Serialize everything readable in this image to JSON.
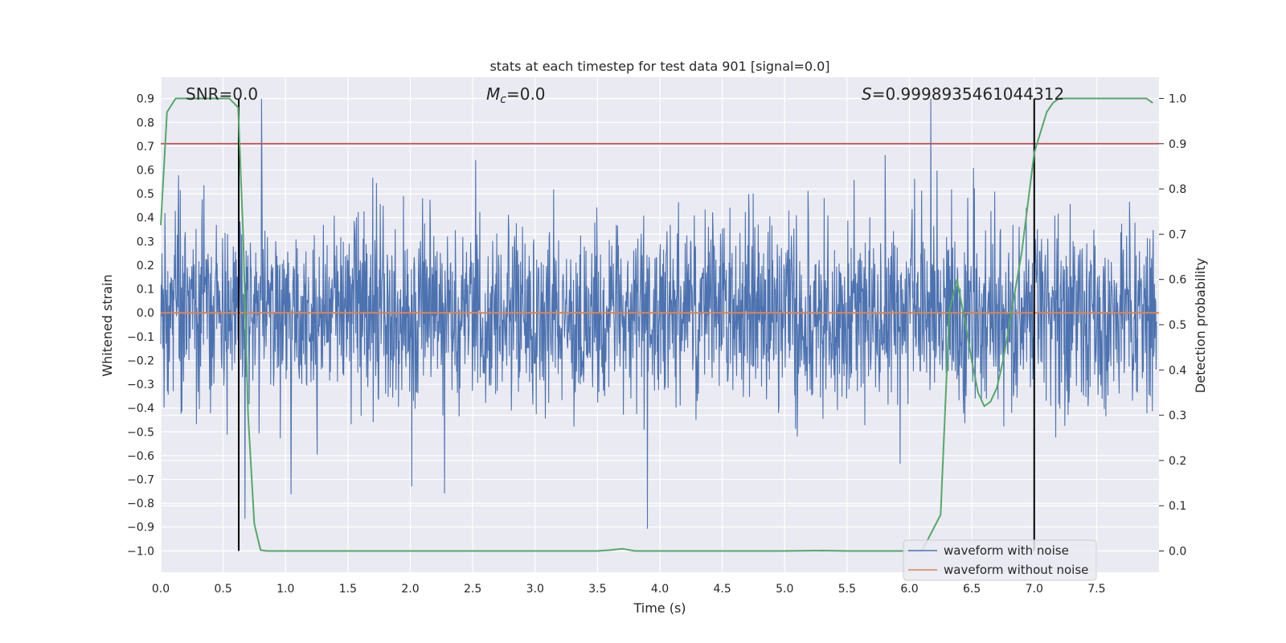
{
  "chart_data": {
    "type": "line",
    "title": "stats at each timestep for test data 901 [signal=0.0]",
    "xlabel": "Time (s)",
    "ylabel": "Whitened strain",
    "y2label": "Detection probability",
    "xlim": [
      0.0,
      8.0
    ],
    "ylim": [
      -1.09,
      0.99
    ],
    "y2lim": [
      -0.047,
      1.047
    ],
    "xticks": [
      "0.0",
      "0.5",
      "1.0",
      "1.5",
      "2.0",
      "2.5",
      "3.0",
      "3.5",
      "4.0",
      "4.5",
      "5.0",
      "5.5",
      "6.0",
      "6.5",
      "7.0",
      "7.5"
    ],
    "yticks": [
      "0.9",
      "0.8",
      "0.7",
      "0.6",
      "0.5",
      "0.4",
      "0.3",
      "0.2",
      "0.1",
      "0.0",
      "−0.1",
      "−0.2",
      "−0.3",
      "−0.4",
      "−0.5",
      "−0.6",
      "−0.7",
      "−0.8",
      "−0.9",
      "−1.0"
    ],
    "y2ticks": [
      "1.0",
      "0.9",
      "0.8",
      "0.7",
      "0.6",
      "0.5",
      "0.4",
      "0.3",
      "0.2",
      "0.1",
      "0.0"
    ],
    "grid": true,
    "legend_position": "bottom-right",
    "annotations": {
      "snr": "SNR=0.0",
      "mc_symbol": "M",
      "mc_sub": "c",
      "mc_value": "=0.0",
      "s_symbol": "S",
      "s_value": "=0.9998935461044312"
    },
    "threshold_probability": 0.9,
    "vertical_markers": [
      0.625,
      7.0
    ],
    "series": [
      {
        "name": "waveform with noise",
        "color": "#4c72b0",
        "description": "whitened noise strain, range approximately -1.0 to 0.9",
        "range": [
          -1.0,
          0.9
        ]
      },
      {
        "name": "waveform without noise",
        "color": "#dd8452",
        "x": [
          0.0,
          8.0
        ],
        "values": [
          0.0,
          0.0
        ]
      },
      {
        "color": "#55a868",
        "axis": "right",
        "x": [
          0.0,
          0.05,
          0.12,
          0.25,
          0.4,
          0.55,
          0.62,
          0.66,
          0.7,
          0.75,
          0.8,
          0.85,
          1.0,
          1.5,
          2.0,
          3.0,
          3.5,
          3.6,
          3.7,
          3.8,
          4.0,
          5.0,
          5.3,
          5.5,
          6.0,
          6.1,
          6.25,
          6.32,
          6.38,
          6.45,
          6.5,
          6.55,
          6.6,
          6.65,
          6.7,
          6.75,
          6.8,
          6.9,
          7.0,
          7.1,
          7.15,
          7.2,
          7.3,
          7.5,
          7.8,
          7.9,
          7.95
        ],
        "values": [
          0.72,
          0.97,
          1.0,
          1.0,
          1.0,
          1.0,
          0.98,
          0.7,
          0.3,
          0.06,
          0.002,
          0.0,
          0.0,
          0.0,
          0.0,
          0.0,
          0.0,
          0.002,
          0.005,
          0.0,
          0.0,
          0.0,
          0.001,
          0.0,
          0.0,
          0.0,
          0.08,
          0.53,
          0.6,
          0.5,
          0.42,
          0.35,
          0.32,
          0.33,
          0.36,
          0.42,
          0.5,
          0.66,
          0.88,
          0.97,
          0.99,
          1.0,
          1.0,
          1.0,
          1.0,
          1.0,
          0.99
        ]
      }
    ]
  }
}
